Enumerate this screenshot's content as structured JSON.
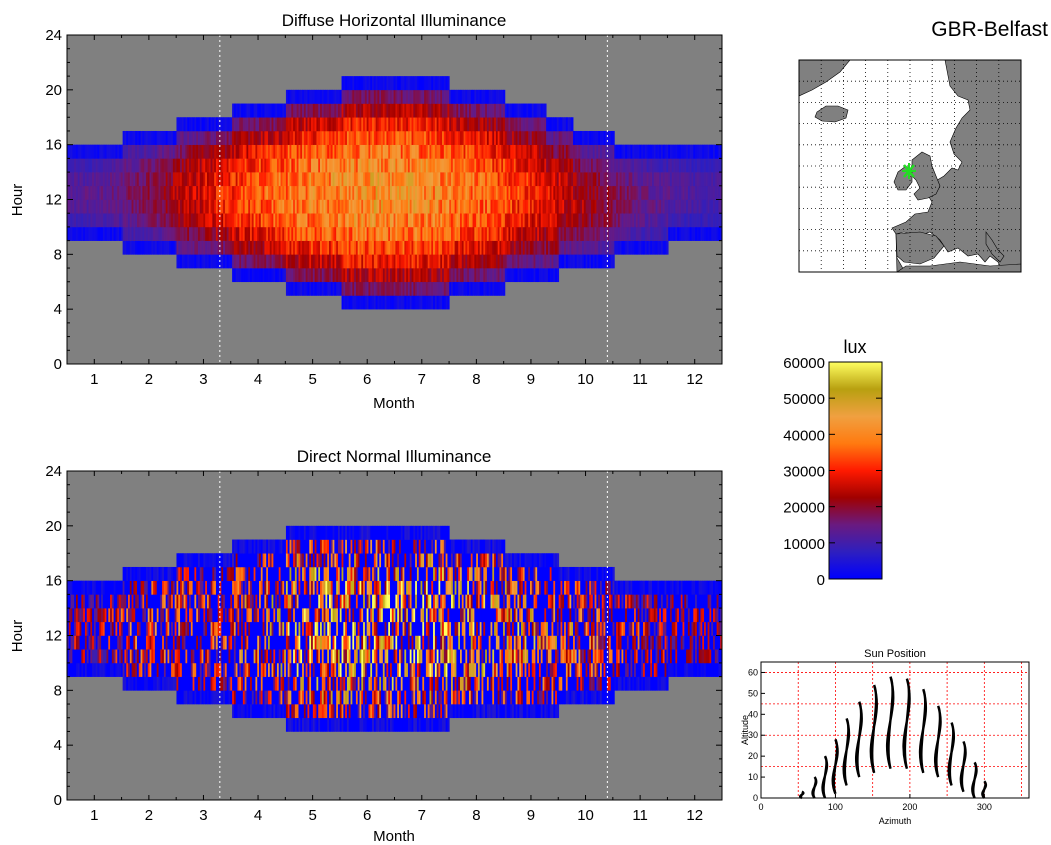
{
  "location_title": "GBR-Belfast",
  "colors": {
    "no_data": "#808080",
    "grid_dotted": "#ffffff",
    "marker": "#22dd22",
    "sun_path": "#000000",
    "sun_grid": "#ff0000"
  },
  "chart_data": [
    {
      "id": "diffuse",
      "type": "heatmap",
      "title": "Diffuse Horizontal Illuminance",
      "xlabel": "Month",
      "ylabel": "Hour",
      "xlim": [
        0.5,
        12.5
      ],
      "ylim": [
        0,
        24
      ],
      "xticks": [
        1,
        2,
        3,
        4,
        5,
        6,
        7,
        8,
        9,
        10,
        11,
        12
      ],
      "yticks": [
        0,
        4,
        8,
        12,
        16,
        20,
        24
      ],
      "dst_markers_month": [
        3.3,
        10.4
      ],
      "colorbar_unit": "lux",
      "daylight_hours_by_month": [
        {
          "month": 1,
          "start": 9,
          "end": 16
        },
        {
          "month": 2,
          "start": 8,
          "end": 17
        },
        {
          "month": 3,
          "start": 7,
          "end": 18
        },
        {
          "month": 4,
          "start": 6,
          "end": 19
        },
        {
          "month": 5,
          "start": 5,
          "end": 20
        },
        {
          "month": 6,
          "start": 4,
          "end": 21
        },
        {
          "month": 7,
          "start": 4,
          "end": 21
        },
        {
          "month": 8,
          "start": 5,
          "end": 20
        },
        {
          "month": 9,
          "start": 6,
          "end": 19
        },
        {
          "month": 10,
          "start": 7,
          "end": 17
        },
        {
          "month": 11,
          "start": 8,
          "end": 16
        },
        {
          "month": 12,
          "start": 9,
          "end": 16
        }
      ],
      "peak_value_lux_by_month": [
        14000,
        20000,
        30000,
        38000,
        44000,
        46000,
        45000,
        40000,
        33000,
        24000,
        16000,
        12000
      ]
    },
    {
      "id": "direct",
      "type": "heatmap",
      "title": "Direct Normal Illuminance",
      "xlabel": "Month",
      "ylabel": "Hour",
      "xlim": [
        0.5,
        12.5
      ],
      "ylim": [
        0,
        24
      ],
      "xticks": [
        1,
        2,
        3,
        4,
        5,
        6,
        7,
        8,
        9,
        10,
        11,
        12
      ],
      "yticks": [
        0,
        4,
        8,
        12,
        16,
        20,
        24
      ],
      "dst_markers_month": [
        3.3,
        10.4
      ],
      "colorbar_unit": "lux",
      "daylight_hours_by_month": [
        {
          "month": 1,
          "start": 9,
          "end": 16
        },
        {
          "month": 2,
          "start": 8,
          "end": 17
        },
        {
          "month": 3,
          "start": 7,
          "end": 18
        },
        {
          "month": 4,
          "start": 6,
          "end": 19
        },
        {
          "month": 5,
          "start": 5,
          "end": 20
        },
        {
          "month": 6,
          "start": 5,
          "end": 20
        },
        {
          "month": 7,
          "start": 5,
          "end": 20
        },
        {
          "month": 8,
          "start": 6,
          "end": 19
        },
        {
          "month": 9,
          "start": 6,
          "end": 18
        },
        {
          "month": 10,
          "start": 7,
          "end": 17
        },
        {
          "month": 11,
          "start": 8,
          "end": 16
        },
        {
          "month": 12,
          "start": 9,
          "end": 16
        }
      ],
      "peak_value_lux_by_month": [
        30000,
        45000,
        40000,
        50000,
        62000,
        60000,
        62000,
        58000,
        55000,
        45000,
        35000,
        30000
      ]
    },
    {
      "id": "colorbar",
      "type": "colorbar",
      "title": "lux",
      "range": [
        0,
        60000
      ],
      "ticks": [
        0,
        10000,
        20000,
        30000,
        40000,
        50000,
        60000
      ],
      "colormap": [
        "#0000ff",
        "#2e1fbf",
        "#6a1a80",
        "#a00000",
        "#ff1a00",
        "#ff7a10",
        "#f0a040",
        "#b8a010",
        "#ffff60"
      ]
    },
    {
      "id": "sunpath",
      "type": "line",
      "title": "Sun Position",
      "xlabel": "Azimuth",
      "ylabel": "Altitude",
      "xlim": [
        0,
        360
      ],
      "ylim": [
        0,
        65
      ],
      "xticks": [
        0,
        100,
        200,
        300
      ],
      "yticks": [
        0,
        10,
        20,
        30,
        40,
        50,
        60
      ],
      "gridlines_x": [
        50,
        100,
        150,
        200,
        250,
        300,
        350
      ],
      "gridlines_y": [
        15,
        30,
        45,
        60
      ],
      "analemmas": [
        {
          "az": 55,
          "alt_low": 0,
          "alt_high": 3
        },
        {
          "az": 72,
          "alt_low": 0,
          "alt_high": 10
        },
        {
          "az": 86,
          "alt_low": 0,
          "alt_high": 20
        },
        {
          "az": 100,
          "alt_low": 2,
          "alt_high": 28
        },
        {
          "az": 115,
          "alt_low": 6,
          "alt_high": 38
        },
        {
          "az": 132,
          "alt_low": 10,
          "alt_high": 46
        },
        {
          "az": 152,
          "alt_low": 12,
          "alt_high": 54
        },
        {
          "az": 174,
          "alt_low": 14,
          "alt_high": 58
        },
        {
          "az": 196,
          "alt_low": 14,
          "alt_high": 57
        },
        {
          "az": 218,
          "alt_low": 12,
          "alt_high": 52
        },
        {
          "az": 238,
          "alt_low": 10,
          "alt_high": 44
        },
        {
          "az": 256,
          "alt_low": 6,
          "alt_high": 36
        },
        {
          "az": 272,
          "alt_low": 3,
          "alt_high": 27
        },
        {
          "az": 287,
          "alt_low": 0,
          "alt_high": 17
        },
        {
          "az": 300,
          "alt_low": 0,
          "alt_high": 8
        }
      ]
    }
  ],
  "map": {
    "marker_label": "Belfast"
  }
}
